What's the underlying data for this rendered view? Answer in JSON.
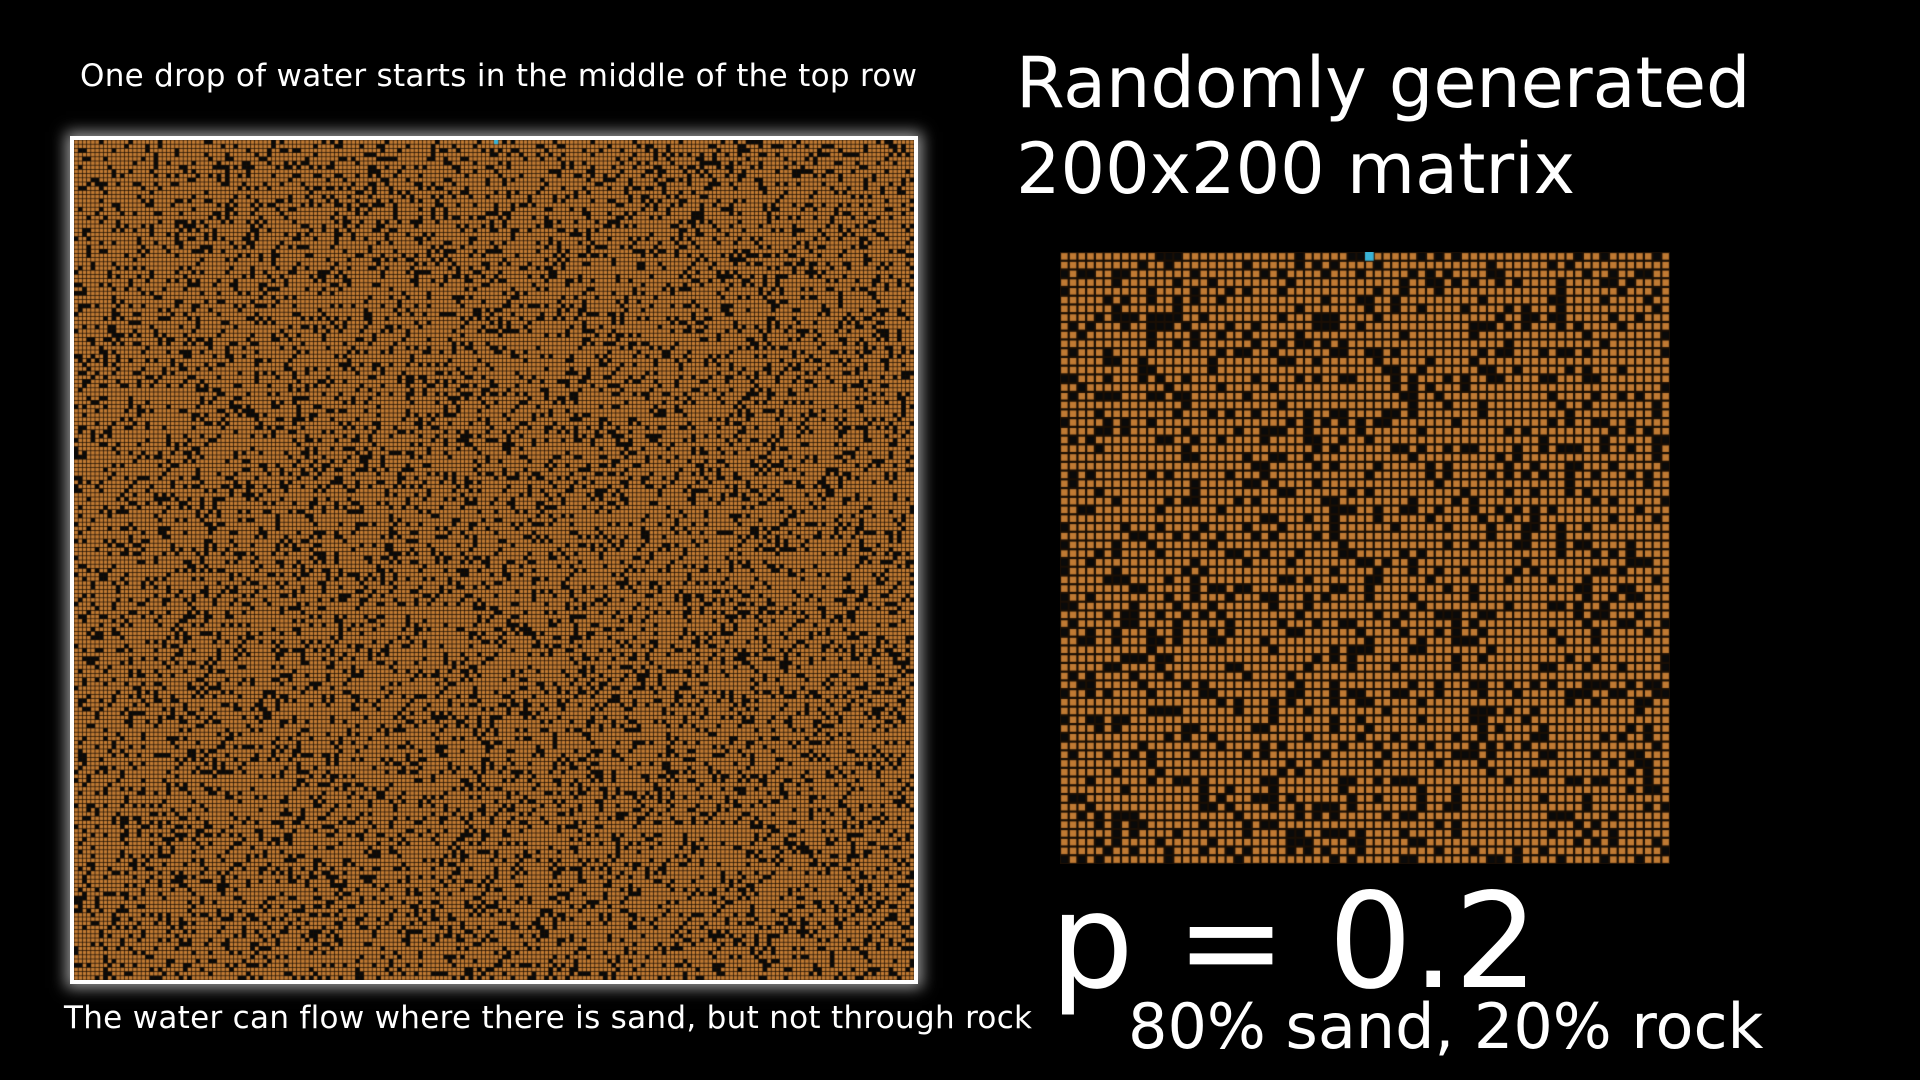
{
  "slide": {
    "caption_top": "One drop of water starts in the middle of the top row",
    "caption_bottom": "The water can flow where there is sand, but not through rock",
    "title_line1": "Randomly generated",
    "title_line2": "200x200 matrix",
    "p_value": "p = 0.2",
    "composition": "80% sand, 20% rock"
  },
  "matrix": {
    "rock_probability": 0.2,
    "sand_color": "#c07a33",
    "rock_color": "#0a0a0a",
    "water_color": "#3ab3d6",
    "background": "#000000",
    "frame_color": "#ffffff"
  }
}
